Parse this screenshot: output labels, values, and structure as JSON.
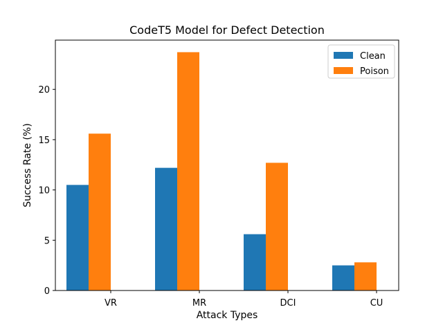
{
  "chart_data": {
    "type": "bar",
    "title": "CodeT5 Model for Defect Detection",
    "xlabel": "Attack Types",
    "ylabel": "Success Rate (%)",
    "categories": [
      "VR",
      "MR",
      "DCI",
      "CU"
    ],
    "series": [
      {
        "name": "Clean",
        "values": [
          10.5,
          12.2,
          5.6,
          2.5
        ],
        "color": "#1f77b4"
      },
      {
        "name": "Poison",
        "values": [
          15.6,
          23.7,
          12.7,
          2.8
        ],
        "color": "#ff7f0e"
      }
    ],
    "ylim": [
      0,
      24.9
    ],
    "yticks": [
      0,
      5,
      10,
      15,
      20
    ],
    "grid": false,
    "legend_position": "top-right"
  }
}
